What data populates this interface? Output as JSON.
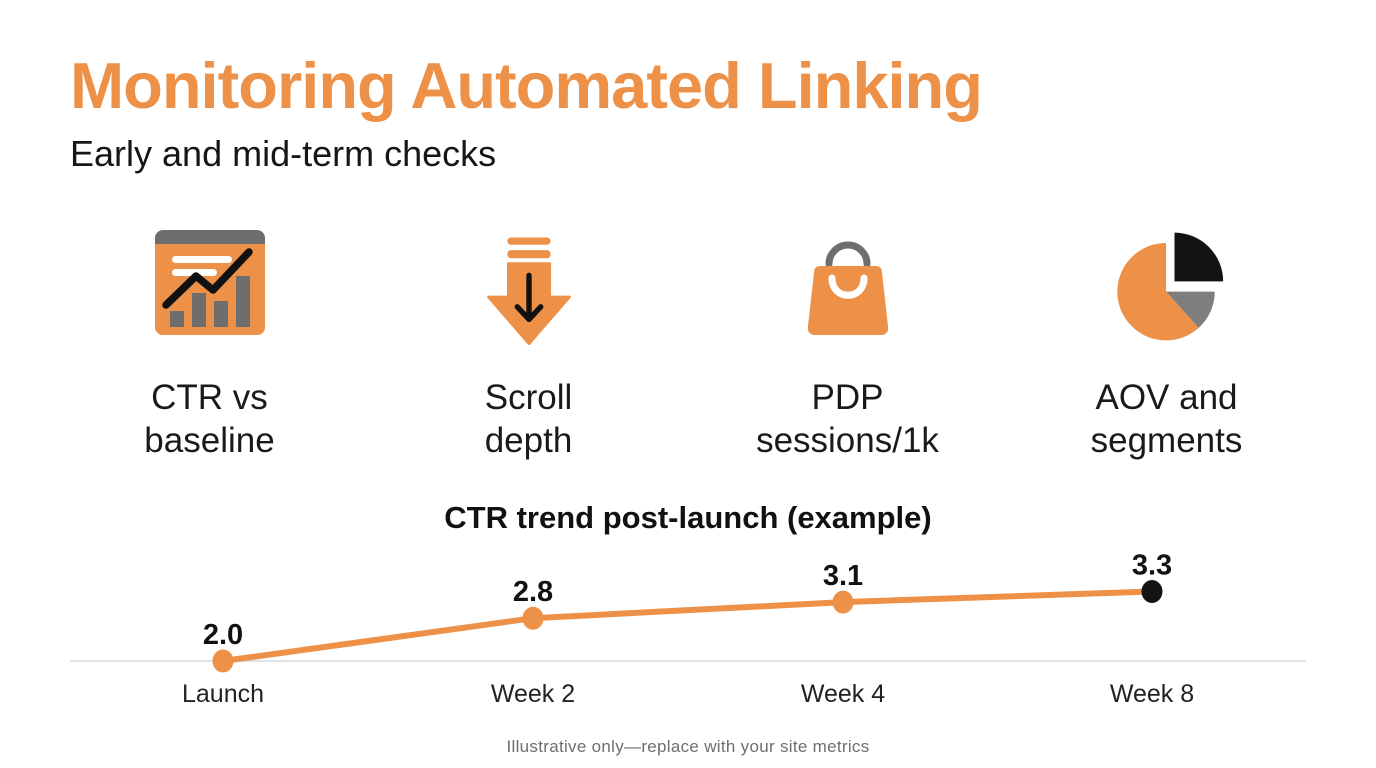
{
  "slide": {
    "title": "Monitoring Automated Linking",
    "subtitle": "Early and mid-term checks",
    "footer": "Illustrative only—replace with your site metrics"
  },
  "colors": {
    "accent_orange": "#EE9148",
    "icon_gray": "#6E6E6E",
    "icon_black": "#131313",
    "pie_gray": "#7E7E7E",
    "text_dark": "#1A1A1A",
    "muted_gray": "#6E6E6E",
    "baseline_gray": "#E2E2E2"
  },
  "metrics": [
    {
      "icon": "bar-chart-icon",
      "lines": [
        "CTR vs",
        "baseline"
      ]
    },
    {
      "icon": "scroll-down-arrow-icon",
      "lines": [
        "Scroll",
        "depth"
      ]
    },
    {
      "icon": "shopping-bag-icon",
      "lines": [
        "PDP",
        "sessions/1k"
      ]
    },
    {
      "icon": "pie-chart-icon",
      "lines": [
        "AOV and",
        "segments"
      ]
    }
  ],
  "chart_data": {
    "type": "line",
    "title": "CTR trend post-launch (example)",
    "categories": [
      "Launch",
      "Week 2",
      "Week 4",
      "Week 8"
    ],
    "values": [
      2.0,
      2.8,
      3.1,
      3.3
    ],
    "value_labels": [
      "2.0",
      "2.8",
      "3.1",
      "3.3"
    ],
    "xlabel": "",
    "ylabel": "",
    "ylim": [
      2.0,
      3.5
    ],
    "grid": false,
    "legend": "none",
    "baseline_at_first_value": true,
    "line_color": "#EE9148",
    "point_color": "#EE9148",
    "last_point_color": "#141414",
    "value_label_color": "#111111",
    "axis_label_color": "#222222",
    "baseline_color": "#E2E2E2"
  }
}
